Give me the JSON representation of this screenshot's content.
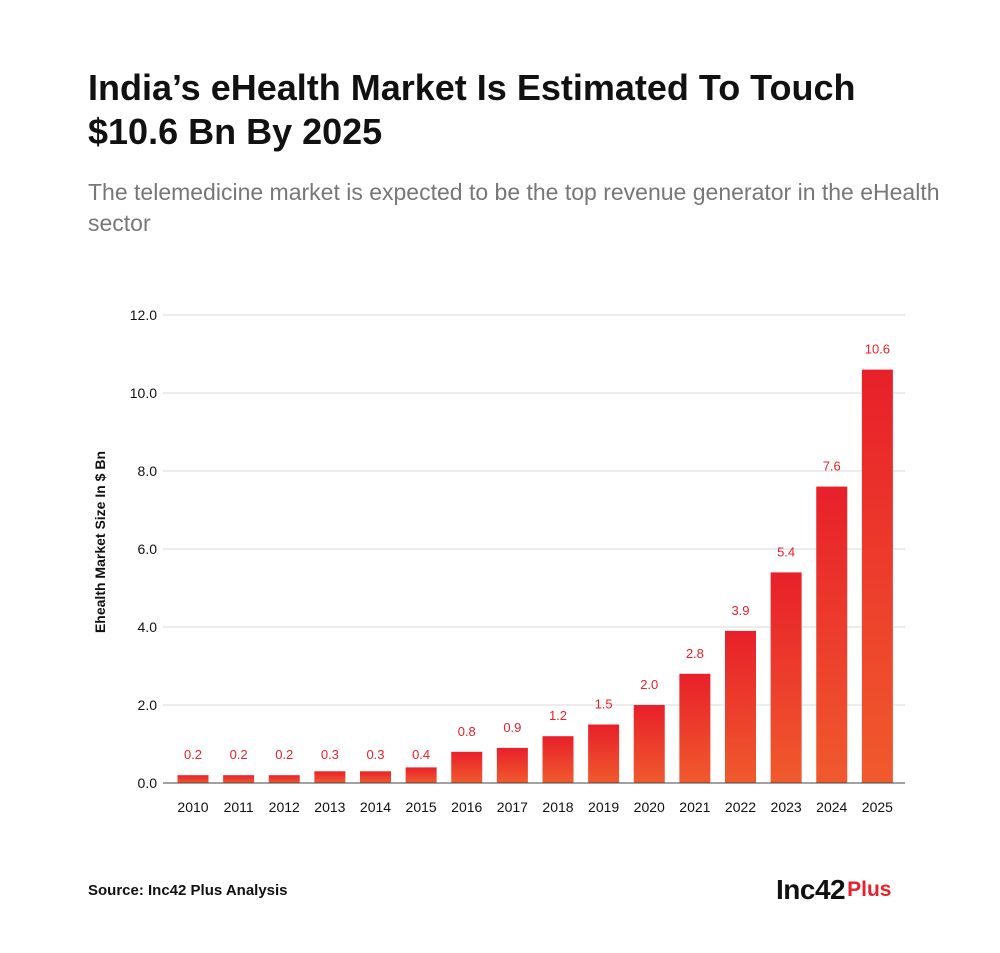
{
  "header": {
    "title": "India’s eHealth Market Is Estimated To Touch $10.6 Bn By 2025",
    "subtitle": "The telemedicine market is expected to be the top revenue generator in the eHealth sector"
  },
  "footer": {
    "source": "Source: Inc42 Plus Analysis",
    "logo_main": "Inc42",
    "logo_plus": "Plus"
  },
  "colors": {
    "bar_top": "#e8202a",
    "bar_bottom": "#f05a2d",
    "value_label": "#e8202a",
    "grid": "#d9d9d9",
    "text": "#111111"
  },
  "chart_data": {
    "type": "bar",
    "categories": [
      "2010",
      "2011",
      "2012",
      "2013",
      "2014",
      "2015",
      "2016",
      "2017",
      "2018",
      "2019",
      "2020",
      "2021",
      "2022",
      "2023",
      "2024",
      "2025"
    ],
    "values": [
      0.2,
      0.2,
      0.2,
      0.3,
      0.3,
      0.4,
      0.8,
      0.9,
      1.2,
      1.5,
      2.0,
      2.8,
      3.9,
      5.4,
      7.6,
      10.6
    ],
    "value_labels": [
      "0.2",
      "0.2",
      "0.2",
      "0.3",
      "0.3",
      "0.4",
      "0.8",
      "0.9",
      "1.2",
      "1.5",
      "2.0",
      "2.8",
      "3.9",
      "5.4",
      "7.6",
      "10.6"
    ],
    "ylabel": "Ehealth Market Size In $ Bn",
    "xlabel": "",
    "ylim": [
      0,
      12
    ],
    "yticks": [
      0,
      2,
      4,
      6,
      8,
      10,
      12
    ],
    "ytick_labels": [
      "0.0",
      "2.0",
      "4.0",
      "6.0",
      "8.0",
      "10.0",
      "12.0"
    ],
    "grid": true,
    "legend": "none"
  }
}
